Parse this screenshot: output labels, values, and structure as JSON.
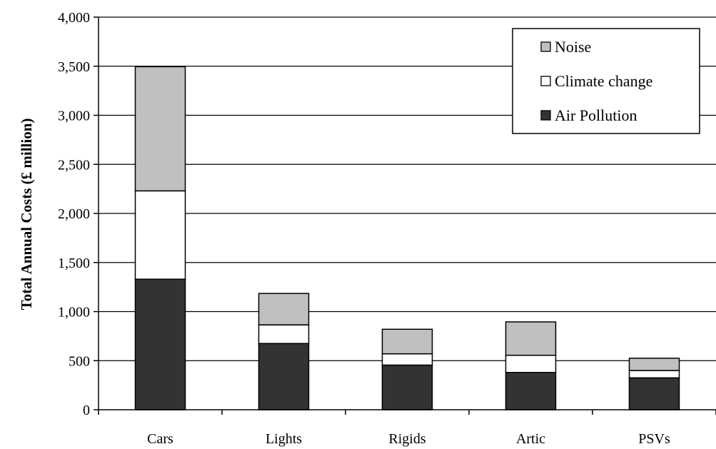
{
  "chart_data": {
    "type": "bar",
    "stacked": true,
    "categories": [
      "Cars",
      "Lights",
      "Rigids",
      "Artic",
      "PSVs"
    ],
    "series": [
      {
        "name": "Air Pollution",
        "values": [
          1330,
          675,
          455,
          380,
          325
        ],
        "color": "#333333"
      },
      {
        "name": "Climate change",
        "values": [
          900,
          190,
          115,
          175,
          75
        ],
        "color": "#ffffff"
      },
      {
        "name": "Noise",
        "values": [
          1265,
          320,
          250,
          340,
          125
        ],
        "color": "#c0c0c0"
      }
    ],
    "legend_order": [
      "Noise",
      "Climate change",
      "Air Pollution"
    ],
    "ylabel": "Total Annual Costs (£ million)",
    "xlabel": "",
    "ylim": [
      0,
      4000
    ],
    "yticks": [
      0,
      500,
      1000,
      1500,
      2000,
      2500,
      3000,
      3500,
      4000
    ],
    "ytick_labels": [
      "0",
      "500",
      "1,000",
      "1,500",
      "2,000",
      "2,500",
      "3,000",
      "3,500",
      "4,000"
    ],
    "grid": true,
    "legend_position": "top-right"
  }
}
